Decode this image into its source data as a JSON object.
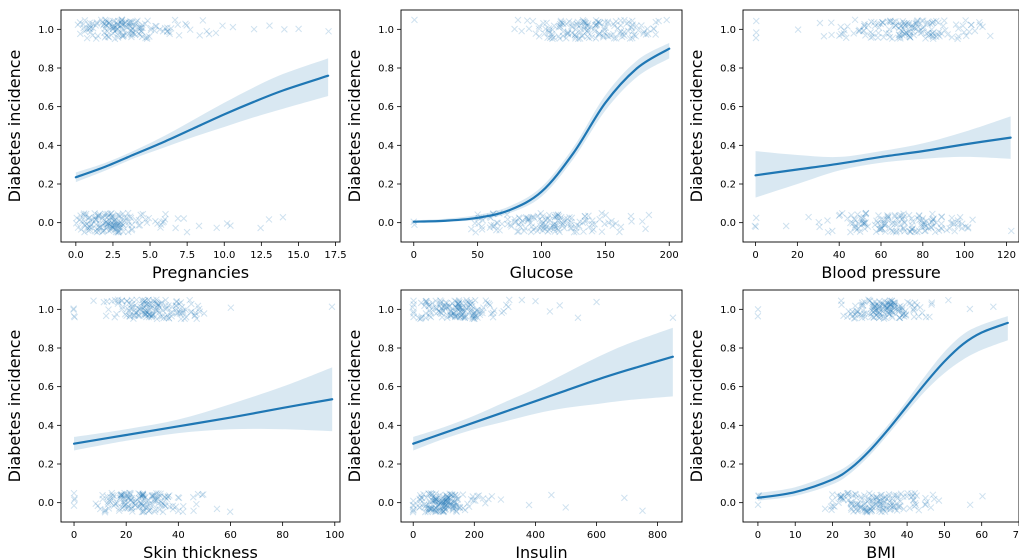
{
  "colors": {
    "accent": "#1f77b4",
    "band": "#1f77b4",
    "frame": "#000000"
  },
  "chart_data": [
    {
      "type": "scatter",
      "xlabel": "Pregnancies",
      "ylabel": "Diabetes incidence",
      "xlim": [
        -1,
        17.8
      ],
      "ylim": [
        -0.1,
        1.1
      ],
      "xticks": [
        0,
        2.5,
        5,
        7.5,
        10,
        12.5,
        15,
        17.5
      ],
      "xtick_labels": [
        "0.0",
        "2.5",
        "5.0",
        "7.5",
        "10.0",
        "12.5",
        "15.0",
        "17.5"
      ],
      "yticks": [
        0,
        0.2,
        0.4,
        0.6,
        0.8,
        1.0
      ],
      "ytick_labels": [
        "0.0",
        "0.2",
        "0.4",
        "0.6",
        "0.8",
        "1.0"
      ],
      "curve": {
        "x": [
          0,
          2,
          4,
          6,
          8,
          10,
          12,
          14,
          17
        ],
        "y": [
          0.235,
          0.29,
          0.355,
          0.42,
          0.49,
          0.56,
          0.625,
          0.685,
          0.76
        ],
        "lower": [
          0.21,
          0.27,
          0.335,
          0.39,
          0.445,
          0.495,
          0.545,
          0.59,
          0.655
        ],
        "upper": [
          0.26,
          0.31,
          0.375,
          0.45,
          0.535,
          0.62,
          0.7,
          0.77,
          0.85
        ]
      },
      "clusters": {
        "zero": {
          "x_range": [
            0,
            11
          ],
          "density_peak": 2,
          "outliers": [
            12.5,
            13,
            14
          ]
        },
        "one": {
          "x_range": [
            0,
            11
          ],
          "density_peak": 3,
          "outliers": [
            12,
            13,
            14,
            15,
            17
          ]
        }
      }
    },
    {
      "type": "scatter",
      "xlabel": "Glucose",
      "ylabel": "Diabetes incidence",
      "xlim": [
        -10,
        210
      ],
      "ylim": [
        -0.1,
        1.1
      ],
      "xticks": [
        0,
        50,
        100,
        150,
        200
      ],
      "xtick_labels": [
        "0",
        "50",
        "100",
        "150",
        "200"
      ],
      "yticks": [
        0,
        0.2,
        0.4,
        0.6,
        0.8,
        1.0
      ],
      "ytick_labels": [
        "0.0",
        "0.2",
        "0.4",
        "0.6",
        "0.8",
        "1.0"
      ],
      "curve": {
        "x": [
          0,
          25,
          50,
          75,
          100,
          125,
          150,
          175,
          200
        ],
        "y": [
          0.005,
          0.01,
          0.025,
          0.065,
          0.16,
          0.36,
          0.62,
          0.8,
          0.9
        ],
        "lower": [
          0.002,
          0.005,
          0.015,
          0.05,
          0.135,
          0.33,
          0.58,
          0.755,
          0.85
        ],
        "upper": [
          0.012,
          0.02,
          0.04,
          0.085,
          0.185,
          0.39,
          0.66,
          0.84,
          0.93
        ]
      },
      "clusters": {
        "zero": {
          "x_range": [
            45,
            195
          ],
          "density_peak": 105,
          "outliers": [
            0,
            0
          ]
        },
        "one": {
          "x_range": [
            75,
            199
          ],
          "density_peak": 140,
          "outliers": [
            0
          ]
        }
      }
    },
    {
      "type": "scatter",
      "xlabel": "Blood pressure",
      "ylabel": "Diabetes incidence",
      "xlim": [
        -6,
        126
      ],
      "ylim": [
        -0.1,
        1.1
      ],
      "xticks": [
        0,
        20,
        40,
        60,
        80,
        100,
        120
      ],
      "xtick_labels": [
        "0",
        "20",
        "40",
        "60",
        "80",
        "100",
        "120"
      ],
      "yticks": [
        0,
        0.2,
        0.4,
        0.6,
        0.8,
        1.0
      ],
      "ytick_labels": [
        "0.0",
        "0.2",
        "0.4",
        "0.6",
        "0.8",
        "1.0"
      ],
      "curve": {
        "x": [
          0,
          20,
          40,
          60,
          80,
          100,
          122
        ],
        "y": [
          0.245,
          0.275,
          0.305,
          0.34,
          0.37,
          0.405,
          0.44
        ],
        "lower": [
          0.13,
          0.2,
          0.27,
          0.31,
          0.33,
          0.34,
          0.33
        ],
        "upper": [
          0.37,
          0.35,
          0.34,
          0.37,
          0.41,
          0.47,
          0.55
        ]
      },
      "clusters": {
        "zero": {
          "x_range": [
            30,
            110
          ],
          "density_peak": 70,
          "outliers": [
            0,
            0,
            0,
            15,
            25,
            30,
            122
          ]
        },
        "one": {
          "x_range": [
            30,
            115
          ],
          "density_peak": 72,
          "outliers": [
            0,
            0,
            0,
            20
          ]
        }
      }
    },
    {
      "type": "scatter",
      "xlabel": "Skin thickness",
      "ylabel": "Diabetes incidence",
      "xlim": [
        -5,
        102
      ],
      "ylim": [
        -0.1,
        1.1
      ],
      "xticks": [
        0,
        20,
        40,
        60,
        80,
        100
      ],
      "xtick_labels": [
        "0",
        "20",
        "40",
        "60",
        "80",
        "100"
      ],
      "yticks": [
        0,
        0.2,
        0.4,
        0.6,
        0.8,
        1.0
      ],
      "ytick_labels": [
        "0.0",
        "0.2",
        "0.4",
        "0.6",
        "0.8",
        "1.0"
      ],
      "curve": {
        "x": [
          0,
          20,
          40,
          60,
          80,
          99
        ],
        "y": [
          0.305,
          0.35,
          0.395,
          0.44,
          0.49,
          0.535
        ],
        "lower": [
          0.27,
          0.32,
          0.36,
          0.38,
          0.38,
          0.37
        ],
        "upper": [
          0.34,
          0.38,
          0.43,
          0.51,
          0.6,
          0.7
        ]
      },
      "clusters": {
        "zero": {
          "x_range": [
            7,
            50
          ],
          "density_peak": 25,
          "outliers": [
            0,
            0,
            0,
            0,
            55,
            60
          ]
        },
        "one": {
          "x_range": [
            7,
            50
          ],
          "density_peak": 30,
          "outliers": [
            0,
            0,
            0,
            0,
            60,
            99
          ]
        }
      }
    },
    {
      "type": "scatter",
      "xlabel": "Insulin",
      "ylabel": "Diabetes incidence",
      "xlim": [
        -40,
        880
      ],
      "ylim": [
        -0.1,
        1.1
      ],
      "xticks": [
        0,
        200,
        400,
        600,
        800
      ],
      "xtick_labels": [
        "0",
        "200",
        "400",
        "600",
        "800"
      ],
      "yticks": [
        0,
        0.2,
        0.4,
        0.6,
        0.8,
        1.0
      ],
      "ytick_labels": [
        "0.0",
        "0.2",
        "0.4",
        "0.6",
        "0.8",
        "1.0"
      ],
      "curve": {
        "x": [
          0,
          100,
          200,
          300,
          400,
          500,
          600,
          700,
          850
        ],
        "y": [
          0.305,
          0.36,
          0.415,
          0.47,
          0.525,
          0.58,
          0.635,
          0.685,
          0.755
        ],
        "lower": [
          0.27,
          0.33,
          0.38,
          0.42,
          0.46,
          0.49,
          0.51,
          0.53,
          0.55
        ],
        "upper": [
          0.34,
          0.39,
          0.45,
          0.52,
          0.59,
          0.67,
          0.75,
          0.82,
          0.905
        ]
      },
      "clusters": {
        "zero": {
          "x_range": [
            15,
            300
          ],
          "density_peak": 90,
          "outliers": [
            0,
            0,
            0,
            0,
            0,
            0,
            380,
            450,
            500,
            690,
            750
          ]
        },
        "one": {
          "x_range": [
            15,
            370
          ],
          "density_peak": 130,
          "outliers": [
            0,
            0,
            0,
            0,
            0,
            0,
            400,
            450,
            480,
            540,
            600,
            850
          ]
        }
      }
    },
    {
      "type": "scatter",
      "xlabel": "BMI",
      "ylabel": "Diabetes incidence",
      "xlim": [
        -4,
        70
      ],
      "ylim": [
        -0.1,
        1.1
      ],
      "xticks": [
        0,
        10,
        20,
        30,
        40,
        50,
        60,
        70
      ],
      "xtick_labels": [
        "0",
        "10",
        "20",
        "30",
        "40",
        "50",
        "60",
        "70"
      ],
      "yticks": [
        0,
        0.2,
        0.4,
        0.6,
        0.8,
        1.0
      ],
      "ytick_labels": [
        "0.0",
        "0.2",
        "0.4",
        "0.6",
        "0.8",
        "1.0"
      ],
      "curve": {
        "x": [
          0,
          10,
          20,
          25,
          30,
          35,
          40,
          45,
          50,
          55,
          60,
          67
        ],
        "y": [
          0.025,
          0.055,
          0.12,
          0.18,
          0.27,
          0.38,
          0.5,
          0.62,
          0.73,
          0.82,
          0.88,
          0.93
        ],
        "lower": [
          0.01,
          0.035,
          0.095,
          0.155,
          0.245,
          0.355,
          0.47,
          0.58,
          0.67,
          0.74,
          0.79,
          0.84
        ],
        "upper": [
          0.05,
          0.08,
          0.15,
          0.205,
          0.295,
          0.405,
          0.53,
          0.66,
          0.78,
          0.87,
          0.92,
          0.965
        ]
      },
      "clusters": {
        "zero": {
          "x_range": [
            18,
            50
          ],
          "density_peak": 31,
          "outliers": [
            0,
            0,
            0,
            57,
            60
          ]
        },
        "one": {
          "x_range": [
            22,
            52
          ],
          "density_peak": 33,
          "outliers": [
            0,
            0,
            57,
            63
          ]
        }
      }
    }
  ]
}
